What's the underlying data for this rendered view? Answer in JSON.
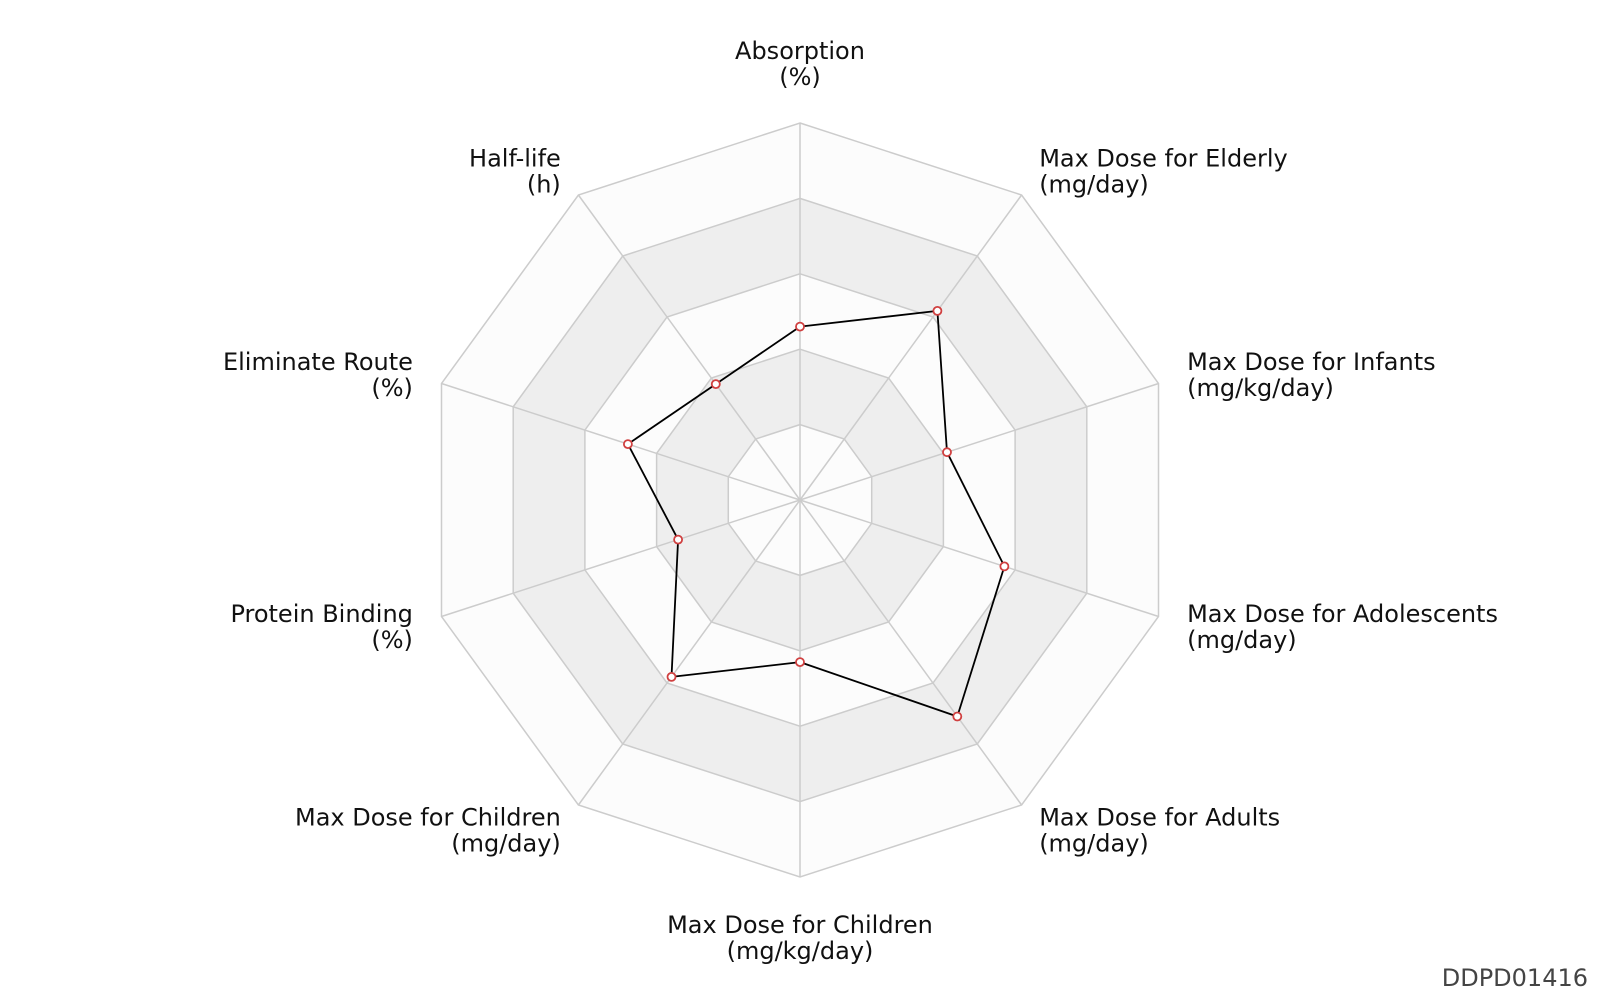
{
  "chart_data": {
    "type": "radar",
    "axes": [
      {
        "name": "Absorption",
        "unit": "(%)"
      },
      {
        "name": "Max Dose for Elderly",
        "unit": "(mg/day)"
      },
      {
        "name": "Max Dose for Infants",
        "unit": "(mg/kg/day)"
      },
      {
        "name": "Max Dose for Adolescents",
        "unit": "(mg/day)"
      },
      {
        "name": "Max Dose for Adults",
        "unit": "(mg/day)"
      },
      {
        "name": "Max Dose for Children",
        "unit": "(mg/kg/day)"
      },
      {
        "name": "Max Dose for Children",
        "unit": "(mg/day)"
      },
      {
        "name": "Protein Binding",
        "unit": "(%)"
      },
      {
        "name": "Eliminate Route",
        "unit": "(%)"
      },
      {
        "name": "Half-life",
        "unit": "(h)"
      }
    ],
    "rings": 5,
    "values": [
      0.46,
      0.62,
      0.41,
      0.57,
      0.71,
      0.43,
      0.58,
      0.34,
      0.48,
      0.38
    ],
    "colors": {
      "band": "#eeeeee",
      "background": "#fcfcfc",
      "grid": "#cccccc",
      "line": "#000000",
      "marker": "#d04040"
    }
  },
  "watermark": "DDPD01416"
}
